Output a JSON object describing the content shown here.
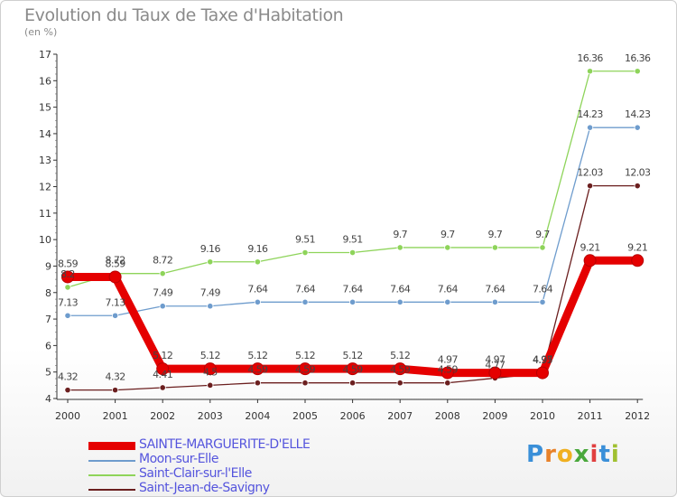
{
  "header": {
    "title": "Evolution du Taux de Taxe d'Habitation",
    "subtitle": "(en %)"
  },
  "logo": {
    "text": "Proxiti",
    "letters": [
      "P",
      "r",
      "o",
      "x",
      "i",
      "t",
      "i"
    ],
    "colors": [
      "#3a8fd8",
      "#e8822a",
      "#f0b020",
      "#4aa83c",
      "#e04040",
      "#3a8fd8",
      "#a0c030"
    ]
  },
  "chart_data": {
    "type": "line",
    "title": "Evolution du Taux de Taxe d'Habitation",
    "ylabel": "(en %)",
    "xlabel": "",
    "x": [
      "2000",
      "2001",
      "2002",
      "2003",
      "2004",
      "2005",
      "2006",
      "2007",
      "2008",
      "2009",
      "2010",
      "2011",
      "2012"
    ],
    "ylim": [
      4,
      17
    ],
    "yticks": [
      "4",
      "5",
      "6",
      "7",
      "8",
      "9",
      "10",
      "11",
      "12",
      "13",
      "14",
      "15",
      "16",
      "17"
    ],
    "grid": false,
    "legend": "bottom-left",
    "series": [
      {
        "name": "SAINTE-MARGUERITE-D'ELLE",
        "color": "#e50000",
        "values": [
          8.59,
          8.59,
          5.12,
          5.12,
          5.12,
          5.12,
          5.12,
          5.12,
          4.97,
          4.97,
          4.97,
          9.21,
          9.21
        ],
        "labels": [
          "8.59",
          "8.59",
          "5.12",
          "5.12",
          "5.12",
          "5.12",
          "5.12",
          "5.12",
          "4.97",
          "4.97",
          "4.97",
          "9.21",
          "9.21"
        ]
      },
      {
        "name": "Moon-sur-Elle",
        "color": "#6e9ccd",
        "values": [
          7.13,
          7.13,
          7.49,
          7.49,
          7.64,
          7.64,
          7.64,
          7.64,
          7.64,
          7.64,
          7.64,
          14.23,
          14.23
        ],
        "labels": [
          "7.13",
          "7.13",
          "7.49",
          "7.49",
          "7.64",
          "7.64",
          "7.64",
          "7.64",
          "7.64",
          "7.64",
          "7.64",
          "14.23",
          "14.23"
        ]
      },
      {
        "name": "Saint-Clair-sur-l'Elle",
        "color": "#8ed45a",
        "values": [
          8.2,
          8.72,
          8.72,
          9.16,
          9.16,
          9.51,
          9.51,
          9.7,
          9.7,
          9.7,
          9.7,
          16.36,
          16.36
        ],
        "labels": [
          "8.2",
          "8.72",
          "8.72",
          "9.16",
          "9.16",
          "9.51",
          "9.51",
          "9.7",
          "9.7",
          "9.7",
          "9.7",
          "16.36",
          "16.36"
        ]
      },
      {
        "name": "Saint-Jean-de-Savigny",
        "color": "#6b1f1f",
        "values": [
          4.32,
          4.32,
          4.41,
          4.5,
          4.59,
          4.59,
          4.59,
          4.59,
          4.59,
          4.77,
          4.95,
          12.03,
          12.03
        ],
        "labels": [
          "4.32",
          "4.32",
          "4.41",
          "4.5",
          "4.59",
          "4.59",
          "4.59",
          "4.59",
          "4.59",
          "4.77",
          "4.95",
          "12.03",
          "12.03"
        ]
      }
    ]
  }
}
